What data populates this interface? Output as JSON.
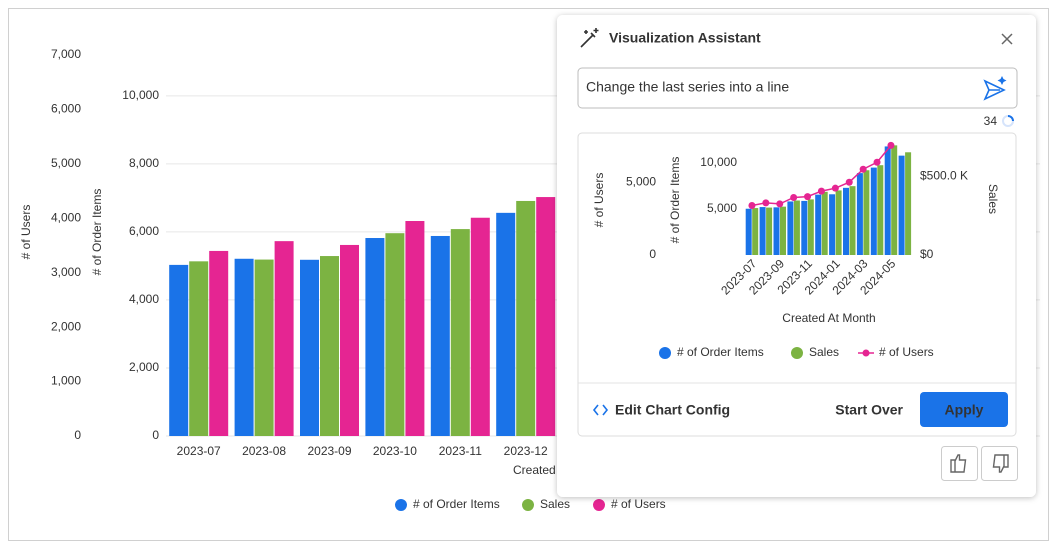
{
  "chart_data": [
    {
      "type": "bar",
      "categories": [
        "2023-07",
        "2023-08",
        "2023-09",
        "2023-10",
        "2023-11",
        "2023-12"
      ],
      "x_label": "Created",
      "ylabel": "# of Order Items",
      "y2label": "# of Users",
      "series": [
        {
          "name": "# of Order Items",
          "color": "#1a73e8",
          "values": [
            5030,
            5210,
            5180,
            5820,
            5880,
            6560
          ]
        },
        {
          "name": "Sales",
          "color": "#7cb342",
          "axis": "y3",
          "values": [
            298000,
            301000,
            307000,
            346000,
            353000,
            401000
          ]
        },
        {
          "name": "# of Users",
          "color": "#e52592",
          "axis": "y2",
          "values": [
            3400,
            3580,
            3510,
            3950,
            4010,
            4390
          ]
        }
      ],
      "ylim": [
        0,
        11200
      ],
      "yticks": [
        0,
        {
          "value": 2000,
          "label": "2,000"
        },
        {
          "value": 4000,
          "label": "4,000"
        },
        {
          "value": 6000,
          "label": "6,000"
        },
        {
          "value": 8000,
          "label": "8,000"
        },
        {
          "value": 10000,
          "label": "10,000"
        }
      ],
      "y2lim": [
        0,
        7000
      ],
      "y2ticks": [
        0,
        {
          "value": 1000,
          "label": "1,000"
        },
        {
          "value": 2000,
          "label": "2,000"
        },
        {
          "value": 3000,
          "label": "3,000"
        },
        {
          "value": 4000,
          "label": "4,000"
        },
        {
          "value": 5000,
          "label": "5,000"
        },
        {
          "value": 6000,
          "label": "6,000"
        },
        {
          "value": 7000,
          "label": "7,000"
        }
      ],
      "y3lim": [
        0,
        650000
      ],
      "grid": true
    },
    {
      "type": "bar",
      "categories": [
        "2023-07",
        null,
        "2023-09",
        null,
        "2023-11",
        null,
        "2024-01",
        null,
        "2024-03",
        null,
        "2024-05",
        null
      ],
      "x_label": "Created At Month",
      "ylabel": "# of Order Items",
      "y2label": "# of Users",
      "y3label": "Sales",
      "series": [
        {
          "name": "# of Order Items",
          "color": "#1a73e8",
          "values": [
            5030,
            5210,
            5180,
            5820,
            5880,
            6560,
            6600,
            7300,
            8900,
            9500,
            11800,
            10800
          ]
        },
        {
          "name": "Sales",
          "color": "#7cb342",
          "axis": "y3",
          "values": [
            298000,
            301000,
            307000,
            346000,
            353000,
            401000,
            410000,
            437000,
            538000,
            570000,
            696000,
            652000
          ]
        },
        {
          "name": "# of Users",
          "color": "#e52592",
          "axis": "y2",
          "type": "line",
          "values": [
            3400,
            3580,
            3510,
            3950,
            4010,
            4390,
            4590,
            5000,
            5890,
            6370,
            7530,
            null
          ]
        }
      ],
      "ylim": [
        0,
        12500
      ],
      "yticks": [
        {
          "value": 5000,
          "label": "5,000"
        },
        {
          "value": 10000,
          "label": "10,000"
        }
      ],
      "y2lim": [
        0,
        7900
      ],
      "y2ticks": [
        0,
        {
          "value": 5000,
          "label": "5,000"
        }
      ],
      "y3lim": [
        0,
        730000
      ],
      "y3ticks": [
        {
          "value": 0,
          "label": "$0"
        },
        {
          "value": 500000,
          "label": "$500.0 K"
        }
      ],
      "grid": false
    }
  ],
  "panel": {
    "title": "Visualization Assistant",
    "prompt": "Change the last series into a line",
    "char_count": 34,
    "edit_config": "Edit Chart Config",
    "start_over": "Start Over",
    "apply": "Apply"
  }
}
